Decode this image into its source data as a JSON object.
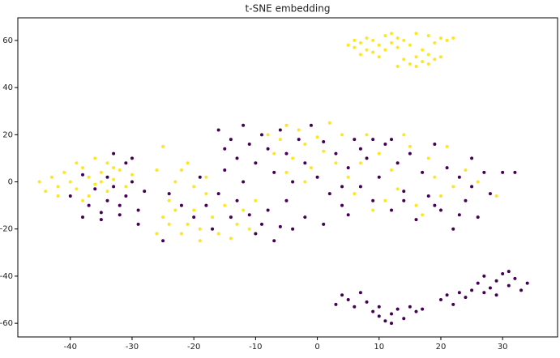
{
  "chart_data": {
    "type": "scatter",
    "title": "t-SNE embedding",
    "xlim": [
      -48.5,
      38.9
    ],
    "ylim": [
      -65.8,
      69.6
    ],
    "xticks": [
      -40,
      -30,
      -20,
      -10,
      0,
      10,
      20,
      30
    ],
    "yticks": [
      -60,
      -40,
      -20,
      0,
      20,
      40,
      60
    ],
    "grid": false,
    "series": [
      {
        "color": "#fde725",
        "x": [
          6,
          7,
          8,
          9,
          10,
          11,
          12,
          13,
          9,
          8,
          11,
          12,
          14,
          7,
          10,
          15,
          5,
          13,
          14,
          15,
          16,
          17,
          18,
          19,
          20,
          16,
          18,
          17,
          16,
          18,
          20,
          21,
          22,
          19,
          13,
          6,
          -45,
          -44,
          -43,
          -42,
          -41,
          -40,
          -39,
          -38,
          -37,
          -36,
          -35,
          -34,
          -33,
          -32,
          -31,
          -36,
          -39,
          -42,
          -37,
          -34,
          -33,
          -35,
          -30,
          -38,
          -26,
          -25,
          -24,
          -23,
          -22,
          -21,
          -20,
          -19,
          -18,
          -22,
          -24,
          -21,
          -20,
          -17,
          -16,
          -15,
          -14,
          -13,
          -12,
          -11,
          -10,
          -26,
          -25,
          -19,
          -23,
          -18,
          -8,
          -7,
          -6,
          -5,
          -4,
          -3,
          -2,
          -1,
          0,
          1,
          2,
          3,
          4,
          5,
          -5,
          -2,
          6,
          7,
          9,
          10,
          11,
          12,
          13,
          15,
          16,
          18,
          19,
          20,
          21,
          22,
          24,
          26,
          29,
          8,
          14,
          17
        ],
        "values": [
          57,
          59,
          56,
          60,
          58,
          62,
          59,
          57,
          55,
          61,
          56,
          63,
          60,
          54,
          53,
          58,
          58,
          61,
          52,
          50,
          53,
          51,
          54,
          52,
          53,
          49,
          50,
          56,
          63,
          62,
          61,
          60,
          61,
          59,
          49,
          60,
          0,
          -4,
          2,
          -6,
          4,
          0,
          -3,
          6,
          2,
          -1,
          4,
          8,
          1,
          5,
          -2,
          10,
          8,
          -2,
          -6,
          -4,
          6,
          0,
          3,
          -8,
          -22,
          -15,
          -8,
          0,
          5,
          -18,
          -12,
          -20,
          -5,
          -22,
          -18,
          8,
          -2,
          -15,
          -22,
          -10,
          -24,
          -18,
          -12,
          -20,
          -8,
          5,
          15,
          -25,
          -12,
          2,
          20,
          12,
          18,
          24,
          10,
          22,
          16,
          6,
          19,
          13,
          25,
          8,
          20,
          2,
          4,
          0,
          -5,
          8,
          -12,
          12,
          -8,
          5,
          -3,
          15,
          -10,
          10,
          2,
          -6,
          15,
          -2,
          5,
          0,
          -6,
          20,
          20,
          -14
        ]
      },
      {
        "color": "#440154",
        "x": [
          -38,
          -37,
          -36,
          -35,
          -34,
          -33,
          -32,
          -31,
          -30,
          -29,
          -28,
          -31,
          -33,
          -30,
          -38,
          -35,
          -40,
          -34,
          -29,
          -32,
          -17,
          -16,
          -15,
          -14,
          -13,
          -12,
          -11,
          -10,
          -9,
          -8,
          -7,
          -6,
          -5,
          -4,
          -16,
          -15,
          -14,
          -13,
          -12,
          -11,
          -10,
          -9,
          -8,
          -7,
          -6,
          -5,
          -4,
          -3,
          -2,
          -1,
          0,
          1,
          2,
          3,
          4,
          5,
          6,
          7,
          8,
          9,
          10,
          11,
          12,
          13,
          14,
          15,
          16,
          17,
          18,
          19,
          20,
          21,
          22,
          23,
          24,
          25,
          26,
          27,
          28,
          30,
          32,
          -20,
          -22,
          -18,
          -19,
          -24,
          -25,
          4,
          5,
          1,
          -2,
          7,
          9,
          12,
          14,
          19,
          23,
          25,
          3,
          4,
          5,
          6,
          7,
          8,
          9,
          10,
          11,
          12,
          13,
          14,
          15,
          16,
          17,
          10,
          12,
          20,
          21,
          22,
          23,
          24,
          25,
          26,
          27,
          28,
          29,
          30,
          31,
          32,
          33,
          34,
          29,
          27,
          31
        ],
        "values": [
          3,
          -10,
          -3,
          -13,
          -8,
          -2,
          -10,
          -6,
          0,
          -12,
          -4,
          8,
          12,
          10,
          -15,
          -16,
          -6,
          2,
          -18,
          -14,
          -20,
          -5,
          5,
          -15,
          -8,
          0,
          -14,
          -22,
          -18,
          -12,
          -25,
          -19,
          -8,
          -20,
          22,
          14,
          18,
          10,
          24,
          16,
          8,
          20,
          14,
          4,
          22,
          12,
          0,
          18,
          8,
          24,
          2,
          17,
          -5,
          12,
          -10,
          6,
          18,
          -2,
          10,
          -8,
          2,
          16,
          -12,
          8,
          -4,
          12,
          -16,
          4,
          -6,
          16,
          -12,
          6,
          -20,
          2,
          -8,
          10,
          -15,
          4,
          -5,
          4,
          4,
          -15,
          -10,
          -10,
          2,
          -5,
          -25,
          -2,
          -14,
          -18,
          -15,
          14,
          18,
          18,
          -8,
          -10,
          -14,
          -2,
          -52,
          -48,
          -50,
          -53,
          -47,
          -51,
          -55,
          -57,
          -59,
          -56,
          -54,
          -58,
          -53,
          -55,
          -54,
          -53,
          -60,
          -50,
          -48,
          -52,
          -47,
          -49,
          -46,
          -43,
          -40,
          -45,
          -42,
          -39,
          -44,
          -41,
          -46,
          -43,
          -48,
          -47,
          -38
        ]
      }
    ]
  }
}
